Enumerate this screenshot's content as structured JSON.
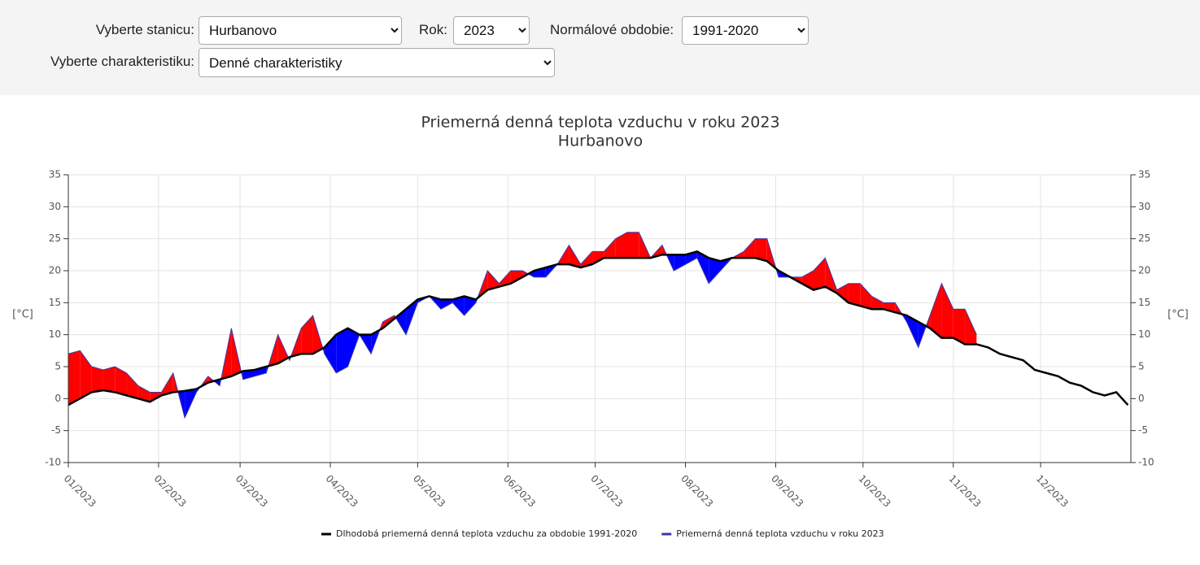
{
  "controls": {
    "station_label": "Vyberte stanicu:",
    "station": "Hurbanovo",
    "year_label": "Rok:",
    "year": "2023",
    "period_label": "Normálové obdobie:",
    "period": "1991-2020",
    "characteristic_label": "Vyberte charakteristiku:",
    "characteristic": "Denné charakteristiky"
  },
  "chart_data": {
    "type": "line",
    "title": "Priemerná denná teplota vzduchu v roku 2023",
    "subtitle": "Hurbanovo",
    "ylabel": "[°C]",
    "y2label": "[°C]",
    "x": [
      0,
      4,
      8,
      12,
      16,
      20,
      24,
      28,
      32,
      36,
      40,
      44,
      48,
      52,
      56,
      60,
      64,
      68,
      72,
      76,
      80,
      84,
      88,
      92,
      96,
      100,
      104,
      108,
      112,
      116,
      120,
      124,
      128,
      132,
      136,
      140,
      144,
      148,
      152,
      156,
      160,
      164,
      168,
      172,
      176,
      180,
      184,
      188,
      192,
      196,
      200,
      204,
      208,
      212,
      216,
      220,
      224,
      228,
      232,
      236,
      240,
      244,
      248,
      252,
      256,
      260,
      264,
      268,
      272,
      276,
      280,
      284,
      288,
      292,
      296,
      300,
      304,
      308,
      312,
      316,
      320,
      324,
      328,
      332,
      336,
      340,
      344,
      348,
      352,
      356,
      360,
      364
    ],
    "series": [
      {
        "name": "Dlhodobá priemerná denná teplota vzduchu za obdobie 1991-2020",
        "color": "#000000",
        "values": [
          -1,
          0,
          1,
          1.3,
          1,
          0.5,
          0,
          -0.5,
          0.5,
          1,
          1.2,
          1.5,
          2.5,
          3,
          3.5,
          4.3,
          4.5,
          5,
          5.5,
          6.5,
          7,
          7,
          8,
          10,
          11,
          10,
          10,
          11,
          12.5,
          14,
          15.5,
          16,
          15.5,
          15.5,
          16,
          15.5,
          17,
          17.5,
          18,
          19,
          20,
          20.5,
          21,
          21,
          20.5,
          21,
          22,
          22,
          22,
          22,
          22,
          22.5,
          22.5,
          22.5,
          23,
          22,
          21.5,
          22,
          22,
          22,
          21.5,
          20,
          19,
          18,
          17,
          17.5,
          16.5,
          15,
          14.5,
          14,
          14,
          13.5,
          13,
          12,
          11,
          9.5,
          9.5,
          8.5,
          8.5,
          8,
          7,
          6.5,
          6,
          4.5,
          4,
          3.5,
          2.5,
          2,
          1,
          0.5,
          1,
          -1
        ]
      },
      {
        "name": "Priemerná denná teplota vzduchu v roku 2023",
        "color": "#3a3aa8",
        "values": [
          7,
          7.5,
          5,
          4.5,
          5,
          4,
          2,
          1,
          1,
          4,
          -3,
          1,
          3.5,
          2,
          11,
          3,
          3.5,
          4,
          10,
          6,
          11,
          13,
          7,
          4,
          5,
          10,
          7,
          12,
          13,
          10,
          15,
          16,
          14,
          15,
          13,
          15,
          20,
          18,
          20,
          20,
          19,
          19,
          21,
          24,
          21,
          23,
          23,
          25,
          26,
          26,
          22,
          24,
          20,
          21,
          22,
          18,
          20,
          22,
          23,
          25,
          25,
          19,
          19,
          19,
          20,
          22,
          17,
          18,
          18,
          16,
          15,
          15,
          12,
          8,
          13,
          18,
          14,
          14,
          10,
          null,
          null,
          null,
          null,
          null,
          null,
          null,
          null,
          null,
          null,
          null,
          null,
          null
        ]
      }
    ],
    "above_color": "#ff0000",
    "below_color": "#0000ff",
    "xlim": [
      0,
      365
    ],
    "xticks": [
      {
        "value": 0,
        "label": "01/2023"
      },
      {
        "value": 31,
        "label": "02/2023"
      },
      {
        "value": 59,
        "label": "03/2023"
      },
      {
        "value": 90,
        "label": "04/2023"
      },
      {
        "value": 120,
        "label": "05/2023"
      },
      {
        "value": 151,
        "label": "06/2023"
      },
      {
        "value": 181,
        "label": "07/2023"
      },
      {
        "value": 212,
        "label": "08/2023"
      },
      {
        "value": 243,
        "label": "09/2023"
      },
      {
        "value": 273,
        "label": "10/2023"
      },
      {
        "value": 304,
        "label": "11/2023"
      },
      {
        "value": 334,
        "label": "12/2023"
      }
    ],
    "ylim": [
      -10,
      35
    ],
    "yticks": [
      -10,
      -5,
      0,
      5,
      10,
      15,
      20,
      25,
      30,
      35
    ],
    "y2lim": [
      -10,
      35
    ],
    "y2ticks": [
      -10,
      -5,
      0,
      5,
      10,
      15,
      20,
      25,
      30,
      35
    ],
    "grid": true
  }
}
